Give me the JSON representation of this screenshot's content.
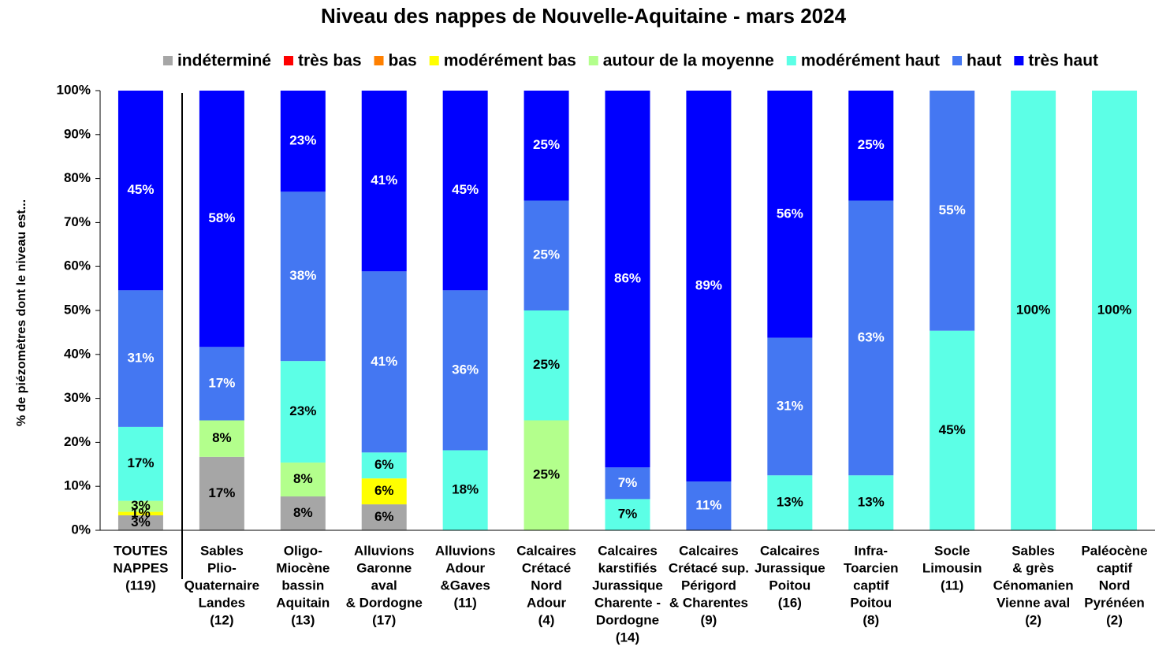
{
  "chart_data": {
    "type": "stacked_bar",
    "title": "Niveau des nappes de Nouvelle-Aquitaine -  mars 2024",
    "y_label": "% de piézomètres dont le niveau est...",
    "categories": [
      [
        "TOUTES",
        "NAPPES",
        "(119)"
      ],
      [
        "Sables",
        "Plio-",
        "Quaternaire",
        "Landes",
        "(12)"
      ],
      [
        "Oligo-",
        "Miocène",
        "bassin",
        "Aquitain",
        "(13)"
      ],
      [
        "Alluvions",
        "Garonne",
        "aval",
        "& Dordogne",
        "(17)"
      ],
      [
        "Alluvions",
        "Adour",
        "&Gaves",
        "(11)"
      ],
      [
        "Calcaires",
        "Crétacé",
        "Nord",
        "Adour",
        "(4)"
      ],
      [
        "Calcaires",
        "karstifiés",
        "Jurassique",
        "Charente -",
        "Dordogne",
        "(14)"
      ],
      [
        "Calcaires",
        "Crétacé sup.",
        "Périgord",
        "& Charentes",
        "(9)"
      ],
      [
        "Calcaires",
        "Jurassique",
        "Poitou",
        "(16)"
      ],
      [
        "Infra-",
        "Toarcien",
        "captif",
        "Poitou",
        "(8)"
      ],
      [
        "Socle",
        "Limousin",
        "(11)"
      ],
      [
        "Sables",
        "& grès",
        "Cénomanien",
        "Vienne aval",
        "(2)"
      ],
      [
        "Paléocène",
        "captif",
        "Nord",
        "Pyrénéen",
        "(2)"
      ]
    ],
    "series": [
      {
        "name": "indéterminé",
        "color": "#a6a6a6",
        "label_color": "#000",
        "values": [
          3.4,
          16.7,
          7.7,
          5.9,
          0,
          0,
          0,
          0,
          0,
          0,
          0,
          0,
          0
        ],
        "value_labels": [
          "3%",
          "17%",
          "8%",
          "6%",
          null,
          null,
          null,
          null,
          null,
          null,
          null,
          null,
          null
        ]
      },
      {
        "name": "très bas",
        "color": "#ff0000",
        "label_color": "#000",
        "values": [
          0,
          0,
          0,
          0,
          0,
          0,
          0,
          0,
          0,
          0,
          0,
          0,
          0
        ],
        "value_labels": [
          null,
          null,
          null,
          null,
          null,
          null,
          null,
          null,
          null,
          null,
          null,
          null,
          null
        ]
      },
      {
        "name": "bas",
        "color": "#ff8000",
        "label_color": "#000",
        "values": [
          0,
          0,
          0,
          0,
          0,
          0,
          0,
          0,
          0,
          0,
          0,
          0,
          0
        ],
        "value_labels": [
          null,
          null,
          null,
          null,
          null,
          null,
          null,
          null,
          null,
          null,
          null,
          null,
          null
        ]
      },
      {
        "name": "modérément bas",
        "color": "#ffff00",
        "label_color": "#000",
        "values": [
          0.8,
          0,
          0,
          5.9,
          0,
          0,
          0,
          0,
          0,
          0,
          0,
          0,
          0
        ],
        "value_labels": [
          "1%",
          null,
          null,
          "6%",
          null,
          null,
          null,
          null,
          null,
          null,
          null,
          null,
          null
        ]
      },
      {
        "name": "autour de la moyenne",
        "color": "#b3ff8c",
        "label_color": "#000",
        "values": [
          2.5,
          8.3,
          7.7,
          0,
          0,
          25,
          0,
          0,
          0,
          0,
          0,
          0,
          0
        ],
        "value_labels": [
          "3%",
          "8%",
          "8%",
          null,
          null,
          "25%",
          null,
          null,
          null,
          null,
          null,
          null,
          null
        ]
      },
      {
        "name": "modérément haut",
        "color": "#5cffe6",
        "label_color": "#000",
        "values": [
          16.8,
          0,
          23.1,
          5.9,
          18.2,
          25,
          7.1,
          0,
          12.5,
          12.5,
          45.4,
          100,
          100
        ],
        "value_labels": [
          "17%",
          null,
          "23%",
          "6%",
          "18%",
          "25%",
          "7%",
          null,
          "13%",
          "13%",
          "45%",
          "100%",
          "100%"
        ]
      },
      {
        "name": "haut",
        "color": "#4477f2",
        "label_color": "#fff",
        "values": [
          31.1,
          16.7,
          38.5,
          41.2,
          36.4,
          25,
          7.2,
          11.1,
          31.3,
          62.5,
          54.6,
          0,
          0
        ],
        "value_labels": [
          "31%",
          "17%",
          "38%",
          "41%",
          "36%",
          "25%",
          "7%",
          "11%",
          "31%",
          "63%",
          "55%",
          null,
          null
        ]
      },
      {
        "name": "très haut",
        "color": "#0000ff",
        "label_color": "#fff",
        "values": [
          45.4,
          58.3,
          23,
          41.1,
          45.4,
          25,
          85.7,
          88.9,
          56.2,
          25,
          0,
          0,
          0
        ],
        "value_labels": [
          "45%",
          "58%",
          "23%",
          "41%",
          "45%",
          "25%",
          "86%",
          "89%",
          "56%",
          "25%",
          null,
          null,
          null
        ]
      }
    ],
    "ylim": [
      0,
      100
    ],
    "yticks": [
      {
        "value": 0,
        "label": "0%"
      },
      {
        "value": 10,
        "label": "10%"
      },
      {
        "value": 20,
        "label": "20%"
      },
      {
        "value": 30,
        "label": "30%"
      },
      {
        "value": 40,
        "label": "40%"
      },
      {
        "value": 50,
        "label": "50%"
      },
      {
        "value": 60,
        "label": "60%"
      },
      {
        "value": 70,
        "label": "70%"
      },
      {
        "value": 80,
        "label": "80%"
      },
      {
        "value": 90,
        "label": "90%"
      },
      {
        "value": 100,
        "label": "100%"
      }
    ],
    "legend": "top"
  }
}
